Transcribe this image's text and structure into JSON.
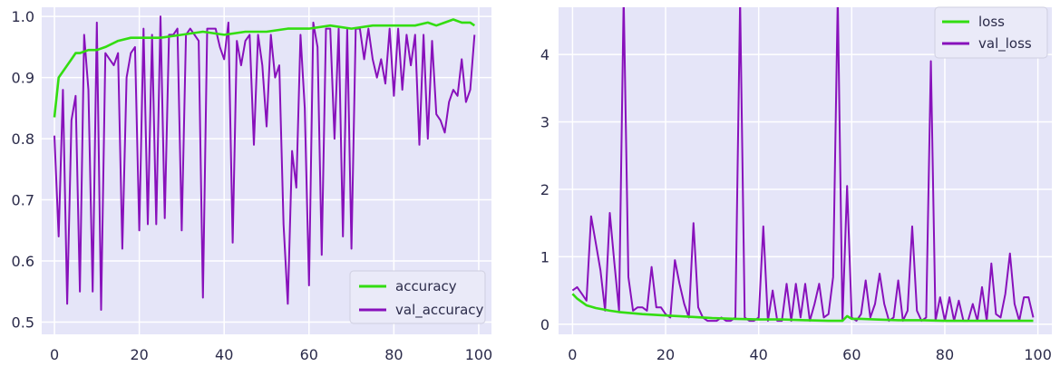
{
  "colors": {
    "plot_background": "#e5e5f8",
    "grid": "#ffffff",
    "train": "#33dd11",
    "val": "#8811bb"
  },
  "chart_data": [
    {
      "type": "line",
      "title": "",
      "xlabel": "",
      "ylabel": "",
      "xlim": [
        -3,
        103
      ],
      "ylim": [
        0.48,
        1.015
      ],
      "grid": true,
      "legend": "bottom-right",
      "x_ticks": [
        0,
        20,
        40,
        60,
        80,
        100
      ],
      "x_tick_labels": [
        "0",
        "20",
        "40",
        "60",
        "80",
        "100"
      ],
      "y_ticks": [
        0.5,
        0.6,
        0.7,
        0.8,
        0.9,
        1.0
      ],
      "y_tick_labels": [
        "0.5",
        "0.6",
        "0.7",
        "0.8",
        "0.9",
        "1.0"
      ],
      "series": [
        {
          "name": "accuracy",
          "color": "#33dd11",
          "x": [
            0,
            1,
            2,
            3,
            4,
            5,
            6,
            8,
            10,
            12,
            15,
            18,
            20,
            25,
            30,
            35,
            40,
            45,
            50,
            55,
            60,
            65,
            70,
            75,
            80,
            85,
            88,
            90,
            92,
            94,
            96,
            98,
            99
          ],
          "y": [
            0.835,
            0.9,
            0.91,
            0.92,
            0.93,
            0.94,
            0.94,
            0.945,
            0.945,
            0.95,
            0.96,
            0.965,
            0.965,
            0.965,
            0.97,
            0.975,
            0.97,
            0.975,
            0.975,
            0.98,
            0.98,
            0.985,
            0.98,
            0.985,
            0.985,
            0.985,
            0.99,
            0.985,
            0.99,
            0.995,
            0.99,
            0.99,
            0.985
          ]
        },
        {
          "name": "val_accuracy",
          "color": "#8811bb",
          "x": [
            0,
            1,
            2,
            3,
            4,
            5,
            6,
            7,
            8,
            9,
            10,
            11,
            12,
            13,
            14,
            15,
            16,
            17,
            18,
            19,
            20,
            21,
            22,
            23,
            24,
            25,
            26,
            27,
            28,
            29,
            30,
            31,
            32,
            33,
            34,
            35,
            36,
            37,
            38,
            39,
            40,
            41,
            42,
            43,
            44,
            45,
            46,
            47,
            48,
            49,
            50,
            51,
            52,
            53,
            54,
            55,
            56,
            57,
            58,
            59,
            60,
            61,
            62,
            63,
            64,
            65,
            66,
            67,
            68,
            69,
            70,
            71,
            72,
            73,
            74,
            75,
            76,
            77,
            78,
            79,
            80,
            81,
            82,
            83,
            84,
            85,
            86,
            87,
            88,
            89,
            90,
            91,
            92,
            93,
            94,
            95,
            96,
            97,
            98,
            99
          ],
          "y": [
            0.805,
            0.64,
            0.88,
            0.53,
            0.83,
            0.87,
            0.55,
            0.97,
            0.88,
            0.55,
            0.99,
            0.52,
            0.94,
            0.93,
            0.92,
            0.94,
            0.62,
            0.9,
            0.94,
            0.95,
            0.65,
            0.98,
            0.66,
            0.97,
            0.66,
            1.0,
            0.67,
            0.97,
            0.97,
            0.98,
            0.65,
            0.97,
            0.98,
            0.97,
            0.96,
            0.54,
            0.98,
            0.98,
            0.98,
            0.95,
            0.93,
            0.99,
            0.63,
            0.96,
            0.92,
            0.96,
            0.97,
            0.79,
            0.97,
            0.92,
            0.82,
            0.97,
            0.9,
            0.92,
            0.66,
            0.53,
            0.78,
            0.72,
            0.97,
            0.85,
            0.56,
            0.99,
            0.95,
            0.61,
            0.98,
            0.98,
            0.8,
            0.98,
            0.64,
            0.98,
            0.62,
            0.98,
            0.98,
            0.93,
            0.98,
            0.93,
            0.9,
            0.93,
            0.89,
            0.98,
            0.87,
            0.98,
            0.88,
            0.97,
            0.92,
            0.97,
            0.79,
            0.97,
            0.8,
            0.96,
            0.84,
            0.83,
            0.81,
            0.86,
            0.88,
            0.87,
            0.93,
            0.86,
            0.88,
            0.97
          ]
        }
      ]
    },
    {
      "type": "line",
      "title": "",
      "xlabel": "",
      "ylabel": "",
      "xlim": [
        -3,
        103
      ],
      "ylim": [
        -0.15,
        4.7
      ],
      "grid": true,
      "legend": "top-right",
      "x_ticks": [
        0,
        20,
        40,
        60,
        80,
        100
      ],
      "x_tick_labels": [
        "0",
        "20",
        "40",
        "60",
        "80",
        "100"
      ],
      "y_ticks": [
        0,
        1,
        2,
        3,
        4
      ],
      "y_tick_labels": [
        "0",
        "1",
        "2",
        "3",
        "4"
      ],
      "series": [
        {
          "name": "loss",
          "color": "#33dd11",
          "x": [
            0,
            1,
            2,
            3,
            5,
            8,
            10,
            15,
            20,
            25,
            30,
            35,
            40,
            45,
            50,
            55,
            58,
            59,
            60,
            62,
            65,
            70,
            75,
            80,
            85,
            90,
            95,
            99
          ],
          "y": [
            0.45,
            0.38,
            0.33,
            0.28,
            0.24,
            0.2,
            0.18,
            0.15,
            0.13,
            0.11,
            0.09,
            0.08,
            0.07,
            0.07,
            0.06,
            0.05,
            0.05,
            0.12,
            0.08,
            0.08,
            0.07,
            0.06,
            0.06,
            0.05,
            0.05,
            0.05,
            0.05,
            0.05
          ]
        },
        {
          "name": "val_loss",
          "color": "#8811bb",
          "x": [
            0,
            1,
            2,
            3,
            4,
            5,
            6,
            7,
            8,
            9,
            10,
            11,
            12,
            13,
            14,
            15,
            16,
            17,
            18,
            19,
            20,
            21,
            22,
            23,
            24,
            25,
            26,
            27,
            28,
            29,
            30,
            31,
            32,
            33,
            34,
            35,
            36,
            37,
            38,
            39,
            40,
            41,
            42,
            43,
            44,
            45,
            46,
            47,
            48,
            49,
            50,
            51,
            52,
            53,
            54,
            55,
            56,
            57,
            58,
            59,
            60,
            61,
            62,
            63,
            64,
            65,
            66,
            67,
            68,
            69,
            70,
            71,
            72,
            73,
            74,
            75,
            76,
            77,
            78,
            79,
            80,
            81,
            82,
            83,
            84,
            85,
            86,
            87,
            88,
            89,
            90,
            91,
            92,
            93,
            94,
            95,
            96,
            97,
            98,
            99
          ],
          "y": [
            0.5,
            0.55,
            0.45,
            0.35,
            1.6,
            1.2,
            0.8,
            0.2,
            1.65,
            0.9,
            0.2,
            4.85,
            0.7,
            0.2,
            0.25,
            0.25,
            0.2,
            0.85,
            0.25,
            0.25,
            0.15,
            0.1,
            0.95,
            0.6,
            0.3,
            0.1,
            1.5,
            0.25,
            0.1,
            0.05,
            0.05,
            0.05,
            0.1,
            0.05,
            0.05,
            0.1,
            4.8,
            0.1,
            0.05,
            0.05,
            0.1,
            1.45,
            0.05,
            0.5,
            0.05,
            0.05,
            0.6,
            0.05,
            0.6,
            0.1,
            0.6,
            0.05,
            0.3,
            0.6,
            0.1,
            0.15,
            0.7,
            4.85,
            0.05,
            2.05,
            0.1,
            0.05,
            0.15,
            0.65,
            0.1,
            0.3,
            0.75,
            0.3,
            0.05,
            0.1,
            0.65,
            0.05,
            0.2,
            1.45,
            0.2,
            0.05,
            0.1,
            3.9,
            0.05,
            0.4,
            0.05,
            0.4,
            0.05,
            0.35,
            0.05,
            0.05,
            0.3,
            0.05,
            0.55,
            0.05,
            0.9,
            0.15,
            0.1,
            0.45,
            1.05,
            0.3,
            0.05,
            0.4,
            0.4,
            0.1
          ]
        }
      ]
    }
  ]
}
